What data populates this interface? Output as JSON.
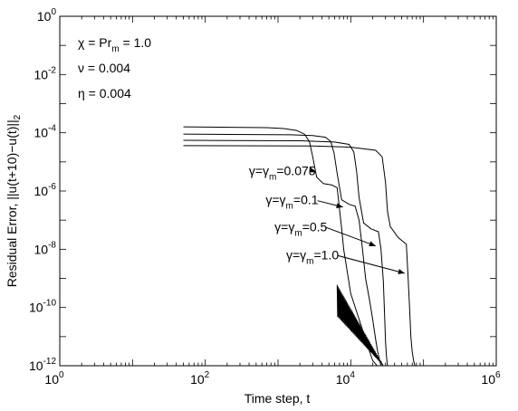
{
  "chart_data": {
    "type": "line",
    "title": "",
    "xlabel": "Time step, t",
    "ylabel": "Residual Error, ||u(t+10)−u(t)||",
    "ylabel_sub": "2",
    "x_scale": "log",
    "y_scale": "log",
    "xlim": [
      1,
      1000000
    ],
    "ylim": [
      1e-12,
      1
    ],
    "grid": false,
    "x_ticks": [
      {
        "base": "10",
        "exp": "0",
        "value": 1
      },
      {
        "base": "10",
        "exp": "2",
        "value": 100
      },
      {
        "base": "10",
        "exp": "4",
        "value": 10000
      },
      {
        "base": "10",
        "exp": "6",
        "value": 1000000
      }
    ],
    "y_ticks": [
      {
        "base": "10",
        "exp": "0",
        "value": 1
      },
      {
        "base": "10",
        "exp": "-2",
        "value": 0.01
      },
      {
        "base": "10",
        "exp": "-4",
        "value": 0.0001
      },
      {
        "base": "10",
        "exp": "-6",
        "value": 1e-06
      },
      {
        "base": "10",
        "exp": "-8",
        "value": 1e-08
      },
      {
        "base": "10",
        "exp": "-10",
        "value": 1e-10
      },
      {
        "base": "10",
        "exp": "-12",
        "value": 1e-12
      }
    ],
    "params": [
      {
        "main": "χ = Pr",
        "sub": "m",
        "tail": " = 1.0"
      },
      {
        "main": "ν = 0.004",
        "sub": "",
        "tail": ""
      },
      {
        "main": "η = 0.004",
        "sub": "",
        "tail": ""
      }
    ],
    "series": [
      {
        "label": {
          "pre": "γ=γ",
          "sub": "m",
          "post": "=0.075"
        },
        "label_anchor": [
          200,
          5e-06
        ],
        "arrow_to": [
          3300,
          4.5e-06
        ],
        "x": [
          50,
          700,
          1200,
          1800,
          2300,
          2700,
          3000,
          3400,
          4200,
          5500,
          6500,
          7500,
          8000,
          10000,
          13000,
          17000,
          20000,
          23000,
          26000,
          28000
        ],
        "y": [
          0.00016,
          0.00015,
          0.00014,
          0.00012,
          9e-05,
          5e-05,
          1.5e-05,
          3e-06,
          1.8e-06,
          1.6e-06,
          1.3e-06,
          5e-08,
          1e-08,
          3e-10,
          4e-11,
          5e-12,
          1.5e-12,
          1e-12,
          1e-12,
          1e-12
        ]
      },
      {
        "label": {
          "pre": "γ=γ",
          "sub": "m",
          "post": "=0.1"
        },
        "label_anchor": [
          340,
          5e-07
        ],
        "arrow_to": [
          7800,
          2.8e-07
        ],
        "x": [
          50,
          1500,
          3000,
          4500,
          5300,
          5900,
          6500,
          7500,
          9500,
          11500,
          13000,
          14500,
          16000,
          18000,
          20000,
          22000,
          23500,
          25000,
          26000,
          28000
        ],
        "y": [
          9e-05,
          8.5e-05,
          8e-05,
          7e-05,
          5e-05,
          2e-05,
          4e-06,
          5e-07,
          3.5e-07,
          3e-07,
          1e-07,
          1e-08,
          1e-09,
          2e-10,
          4e-11,
          8e-12,
          3e-12,
          1.5e-12,
          1e-12,
          1e-12
        ]
      },
      {
        "label": {
          "pre": "γ=γ",
          "sub": "m",
          "post": "=0.5"
        },
        "label_anchor": [
          450,
          6e-08
        ],
        "arrow_to": [
          22000,
          1.3e-08
        ],
        "x": [
          50,
          2000,
          6000,
          9500,
          11000,
          12000,
          13000,
          15000,
          19000,
          24000,
          26000,
          28000,
          29000,
          30000,
          31000,
          32000,
          33000
        ],
        "y": [
          5.5e-05,
          5.3e-05,
          4.8e-05,
          4e-05,
          2.2e-05,
          5e-06,
          6e-07,
          8e-08,
          5e-08,
          4e-08,
          1e-08,
          8e-10,
          8e-11,
          7e-12,
          2e-12,
          1e-12,
          1e-12
        ]
      },
      {
        "label": {
          "pre": "γ=γ",
          "sub": "m",
          "post": "=1.0"
        },
        "label_anchor": [
          650,
          6.5e-09
        ],
        "arrow_to": [
          55000,
          1.5e-09
        ],
        "x": [
          50,
          3000,
          10000,
          22000,
          27000,
          30000,
          32000,
          35000,
          45000,
          58000,
          61000,
          64000,
          67000,
          70000,
          73000,
          76000,
          80000
        ],
        "y": [
          3.6e-05,
          3.5e-05,
          3.2e-05,
          2.5e-05,
          1.5e-05,
          2e-06,
          2e-07,
          6e-08,
          2.5e-08,
          1.5e-08,
          1.5e-09,
          1.3e-10,
          1e-11,
          3e-12,
          1.5e-12,
          1e-12,
          1e-12
        ]
      }
    ],
    "noise_band": {
      "x_start": 6500,
      "x_end": 28000,
      "y_top_start": 6e-10,
      "y_top_end": 1e-12,
      "y_bottom_start": 5e-11,
      "y_bottom_end": 1e-12
    }
  }
}
